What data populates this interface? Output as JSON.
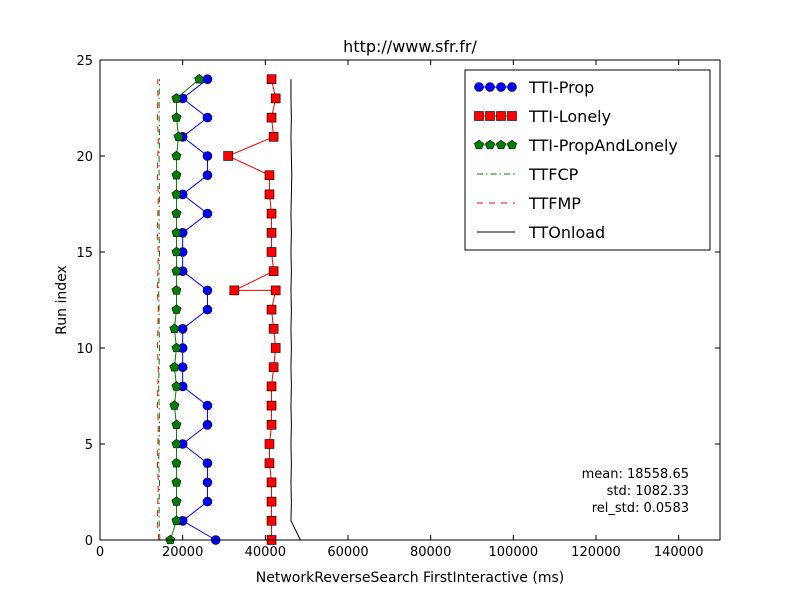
{
  "chart_data": {
    "type": "line",
    "title": "http://www.sfr.fr/",
    "xlabel": "NetworkReverseSearch FirstInteractive (ms)",
    "ylabel": "Run index",
    "xlim": [
      0,
      150000
    ],
    "ylim": [
      0,
      25
    ],
    "xticks": [
      0,
      20000,
      40000,
      60000,
      80000,
      100000,
      120000,
      140000
    ],
    "yticks": [
      0,
      5,
      10,
      15,
      20,
      25
    ],
    "grid": false,
    "legend_position": "top-right",
    "annotation": [
      "mean: 18558.65",
      "std: 1082.33",
      "rel_std: 0.0583"
    ],
    "series": [
      {
        "name": "TTI-Prop",
        "style": "marker-line",
        "marker": "circle",
        "color": "#0000ff",
        "x": [
          28000,
          20000,
          26000,
          26000,
          26000,
          20000,
          26000,
          26000,
          20000,
          20000,
          20000,
          20000,
          26000,
          26000,
          20000,
          20000,
          20000,
          26000,
          20000,
          26000,
          26000,
          20000,
          26000,
          20000,
          26000
        ],
        "y": [
          0,
          1,
          2,
          3,
          4,
          5,
          6,
          7,
          8,
          9,
          10,
          11,
          12,
          13,
          14,
          15,
          16,
          17,
          18,
          19,
          20,
          21,
          22,
          23,
          24
        ]
      },
      {
        "name": "TTI-Lonely",
        "style": "marker-line",
        "marker": "square",
        "color": "#ff0000",
        "x": [
          41500,
          41500,
          41500,
          41500,
          41000,
          41000,
          41500,
          41500,
          41500,
          42000,
          42500,
          42000,
          41500,
          42500,
          32500,
          42000,
          41500,
          41500,
          41500,
          41000,
          41000,
          31000,
          42000,
          41500,
          42500,
          41500
        ],
        "y": [
          0,
          1,
          2,
          3,
          4,
          5,
          6,
          7,
          8,
          9,
          10,
          11,
          12,
          13,
          13,
          14,
          15,
          16,
          17,
          18,
          19,
          20,
          21,
          22,
          23,
          24
        ]
      },
      {
        "name": "TTI-PropAndLonely",
        "style": "marker-line",
        "marker": "pentagon",
        "color": "#008000",
        "x": [
          17000,
          18500,
          18500,
          18500,
          18500,
          18500,
          18500,
          18000,
          18500,
          18000,
          18500,
          18000,
          18500,
          18500,
          18500,
          18500,
          18500,
          18500,
          18500,
          18500,
          18500,
          19000,
          18500,
          18500,
          18500,
          24000
        ],
        "y": [
          0,
          1,
          2,
          3,
          4,
          5,
          6,
          7,
          8,
          9,
          10,
          11,
          12,
          13,
          14,
          15,
          16,
          17,
          18,
          19,
          20,
          21,
          22,
          23,
          23,
          24
        ]
      },
      {
        "name": "TTFCP",
        "style": "dashdot",
        "marker": "",
        "color": "#008000",
        "x": [
          14500,
          14300,
          14300,
          14400,
          14200,
          14300,
          14400,
          14300,
          14200,
          14300,
          14400,
          14300,
          14300,
          14200,
          14300,
          14400,
          14300,
          14300,
          14400,
          14300,
          14300,
          14400,
          14300,
          14300,
          14400
        ],
        "y": [
          0,
          1,
          2,
          3,
          4,
          5,
          6,
          7,
          8,
          9,
          10,
          11,
          12,
          13,
          14,
          15,
          16,
          17,
          18,
          19,
          20,
          21,
          22,
          23,
          24
        ]
      },
      {
        "name": "TTFMP",
        "style": "dashed",
        "marker": "",
        "color": "#ff0000",
        "x": [
          14200,
          13900,
          14000,
          14100,
          13900,
          14000,
          14100,
          13900,
          14000,
          14100,
          13900,
          14000,
          14100,
          13900,
          14000,
          14100,
          13900,
          14000,
          14100,
          13900,
          14000,
          14100,
          13900,
          14000,
          14000
        ],
        "y": [
          0,
          1,
          2,
          3,
          4,
          5,
          6,
          7,
          8,
          9,
          10,
          11,
          12,
          13,
          14,
          15,
          16,
          17,
          18,
          19,
          20,
          21,
          22,
          23,
          24
        ]
      },
      {
        "name": "TTOnload",
        "style": "solid",
        "marker": "",
        "color": "#000000",
        "x": [
          48500,
          46200,
          46300,
          46200,
          46300,
          46200,
          46300,
          46200,
          46300,
          46200,
          46300,
          46200,
          46300,
          46200,
          46300,
          46200,
          46300,
          46200,
          46300,
          46400,
          46300,
          46200,
          46300,
          46200,
          46200
        ],
        "y": [
          0,
          1,
          2,
          3,
          4,
          5,
          6,
          7,
          8,
          9,
          10,
          11,
          12,
          13,
          14,
          15,
          16,
          17,
          18,
          19,
          20,
          21,
          22,
          23,
          24
        ]
      }
    ]
  }
}
